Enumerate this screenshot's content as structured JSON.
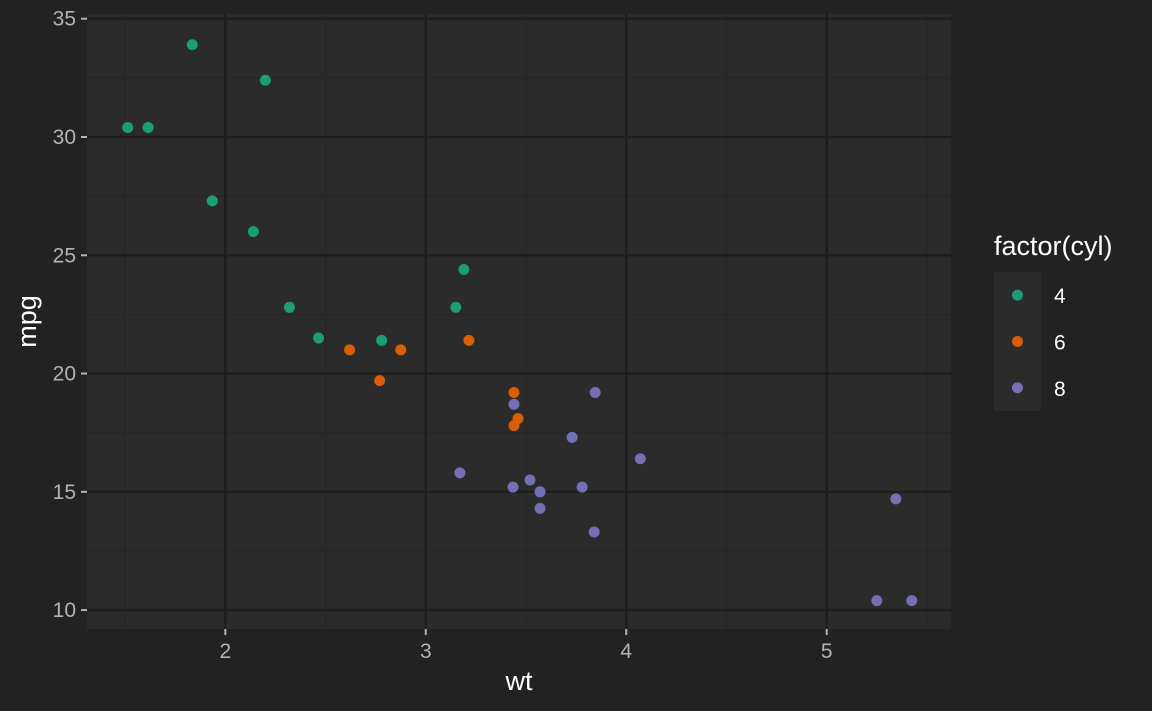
{
  "chart_data": {
    "type": "scatter",
    "xlabel": "wt",
    "ylabel": "mpg",
    "xlim": [
      1.31,
      5.62
    ],
    "ylim": [
      9.2,
      35.2
    ],
    "x_ticks": [
      2,
      3,
      4,
      5
    ],
    "y_ticks": [
      10,
      15,
      20,
      25,
      30,
      35
    ],
    "grid": true,
    "legend": {
      "title": "factor(cyl)",
      "position": "right"
    },
    "colors": {
      "background": "#222222",
      "panel": "#2b2b2b",
      "grid_major": "#1e1e1e",
      "grid_minor": "#262626"
    },
    "series": [
      {
        "name": "4",
        "color": "#1b9e77",
        "points": [
          [
            1.513,
            30.4
          ],
          [
            1.615,
            30.4
          ],
          [
            1.835,
            33.9
          ],
          [
            1.935,
            27.3
          ],
          [
            2.14,
            26.0
          ],
          [
            2.2,
            32.4
          ],
          [
            2.32,
            22.8
          ],
          [
            2.465,
            21.5
          ],
          [
            2.78,
            21.4
          ],
          [
            3.15,
            22.8
          ],
          [
            3.19,
            24.4
          ]
        ]
      },
      {
        "name": "6",
        "color": "#d95f02",
        "points": [
          [
            2.62,
            21.0
          ],
          [
            2.77,
            19.7
          ],
          [
            2.875,
            21.0
          ],
          [
            3.215,
            21.4
          ],
          [
            3.44,
            17.8
          ],
          [
            3.44,
            19.2
          ],
          [
            3.46,
            18.1
          ]
        ]
      },
      {
        "name": "8",
        "color": "#7570b3",
        "points": [
          [
            3.17,
            15.8
          ],
          [
            3.435,
            15.2
          ],
          [
            3.44,
            18.7
          ],
          [
            3.52,
            15.5
          ],
          [
            3.57,
            14.3
          ],
          [
            3.57,
            15.0
          ],
          [
            3.73,
            17.3
          ],
          [
            3.78,
            15.2
          ],
          [
            3.84,
            13.3
          ],
          [
            3.845,
            19.2
          ],
          [
            4.07,
            16.4
          ],
          [
            5.25,
            10.4
          ],
          [
            5.345,
            14.7
          ],
          [
            5.424,
            10.4
          ]
        ]
      }
    ]
  }
}
